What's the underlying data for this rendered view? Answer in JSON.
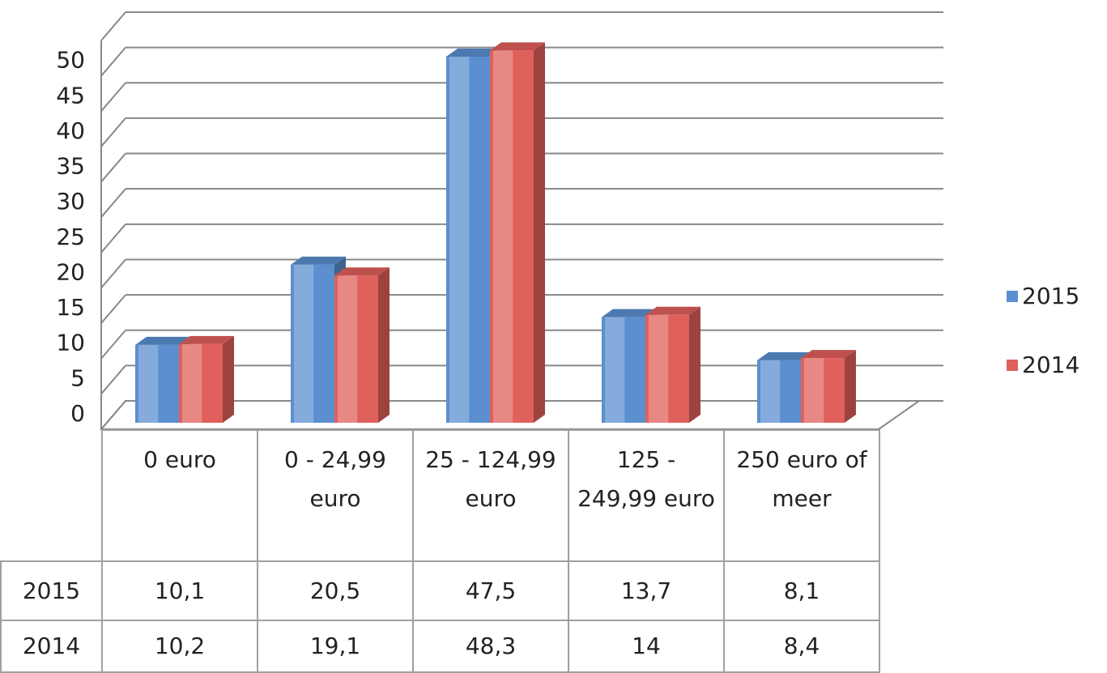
{
  "chart_data": {
    "type": "bar3d",
    "categories": [
      "0 euro",
      "0 - 24,99 euro",
      "25 - 124,99 euro",
      "125 - 249,99 euro",
      "250 euro of meer"
    ],
    "series": [
      {
        "name": "2015",
        "color": "#5b8fd0",
        "values": [
          10.1,
          20.5,
          47.5,
          13.7,
          8.1
        ],
        "value_labels": [
          "10,1",
          "20,5",
          "47,5",
          "13,7",
          "8,1"
        ]
      },
      {
        "name": "2014",
        "color": "#e0605c",
        "values": [
          10.2,
          19.1,
          48.3,
          14,
          8.4
        ],
        "value_labels": [
          "10,2",
          "19,1",
          "48,3",
          "14",
          "8,4"
        ]
      }
    ],
    "ylim": [
      0,
      55
    ],
    "yticks": [
      0,
      5,
      10,
      15,
      20,
      25,
      30,
      35,
      40,
      45,
      50
    ],
    "grid": true,
    "legend": "right"
  }
}
